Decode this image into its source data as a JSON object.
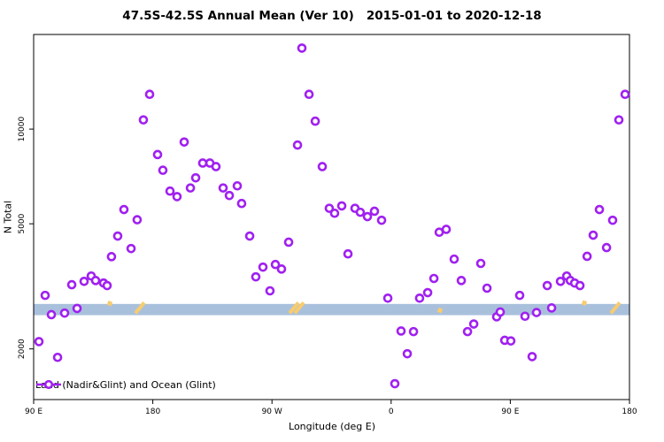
{
  "title": "47.5S-42.5S Annual Mean (Ver 10)   2015-01-01 to 2020-12-18",
  "x_axis": {
    "title": "Longitude (deg E)"
  },
  "y_axis": {
    "title": "N Total"
  },
  "legend": {
    "label": "Land (Nadir&Glint) and Ocean (Glint)"
  },
  "chart_data": {
    "type": "scatter",
    "title": "47.5S-42.5S Annual Mean (Ver 10)   2015-01-01 to 2020-12-18",
    "xlabel": "Longitude (deg E)",
    "ylabel": "N Total",
    "x_axis_note": "longitude axis wraps: 90E..180..90W..0..90E..180 (450 deg span)",
    "xlim": [
      90,
      540
    ],
    "ylim": [
      1380,
      20000
    ],
    "y_scale": "log10",
    "grid": false,
    "x_ticks": [
      {
        "deg": 90,
        "label": "90 E"
      },
      {
        "deg": 180,
        "label": "180"
      },
      {
        "deg": 270,
        "label": "90 W"
      },
      {
        "deg": 360,
        "label": "0"
      },
      {
        "deg": 450,
        "label": "90 E"
      },
      {
        "deg": 540,
        "label": "180"
      }
    ],
    "y_ticks": [
      {
        "value": 2000,
        "label": "2000"
      },
      {
        "value": 5000,
        "label": "5000"
      },
      {
        "value": 10000,
        "label": "10000"
      }
    ],
    "band": {
      "top": 2780,
      "bottom": 2560,
      "note": "horizontal reference band across full axis"
    },
    "marks": [
      {
        "deg": 147.5,
        "value": 2790,
        "kind": "dot"
      },
      {
        "deg": 170.2,
        "value": 2700,
        "kind": "slash"
      },
      {
        "deg": 290.6,
        "value": 2700,
        "kind": "slash-large"
      },
      {
        "deg": 396.9,
        "value": 2650,
        "kind": "dot"
      },
      {
        "deg": 505.9,
        "value": 2800,
        "kind": "dot"
      },
      {
        "deg": 529.3,
        "value": 2700,
        "kind": "slash"
      }
    ],
    "series_name": "Land (Nadir&Glint) and Ocean (Glint)",
    "points": [
      [
        94.0,
        2110
      ],
      [
        98.7,
        2960
      ],
      [
        103.4,
        2570
      ],
      [
        108.1,
        1880
      ],
      [
        113.4,
        2600
      ],
      [
        118.8,
        3200
      ],
      [
        122.8,
        2690
      ],
      [
        128.1,
        3280
      ],
      [
        133.5,
        3410
      ],
      [
        136.8,
        3300
      ],
      [
        142.8,
        3240
      ],
      [
        145.5,
        3180
      ],
      [
        148.8,
        3930
      ],
      [
        153.5,
        4570
      ],
      [
        158.2,
        5550
      ],
      [
        163.6,
        4170
      ],
      [
        168.2,
        5150
      ],
      [
        172.9,
        10700
      ],
      [
        177.6,
        12900
      ],
      [
        183.6,
        8300
      ],
      [
        187.6,
        7400
      ],
      [
        193.0,
        6350
      ],
      [
        198.3,
        6100
      ],
      [
        203.7,
        9100
      ],
      [
        208.4,
        6500
      ],
      [
        212.4,
        7000
      ],
      [
        217.7,
        7800
      ],
      [
        223.1,
        7800
      ],
      [
        227.7,
        7600
      ],
      [
        233.1,
        6500
      ],
      [
        237.8,
        6150
      ],
      [
        243.8,
        6600
      ],
      [
        247.1,
        5800
      ],
      [
        253.2,
        4570
      ],
      [
        257.8,
        3390
      ],
      [
        263.2,
        3640
      ],
      [
        268.5,
        3060
      ],
      [
        272.6,
        3710
      ],
      [
        277.2,
        3590
      ],
      [
        282.6,
        4370
      ],
      [
        289.3,
        8900
      ],
      [
        292.6,
        18100
      ],
      [
        298.0,
        12900
      ],
      [
        302.7,
        10600
      ],
      [
        308.0,
        7600
      ],
      [
        313.3,
        5600
      ],
      [
        317.3,
        5400
      ],
      [
        322.7,
        5700
      ],
      [
        327.4,
        4010
      ],
      [
        332.7,
        5600
      ],
      [
        336.7,
        5440
      ],
      [
        342.1,
        5270
      ],
      [
        347.4,
        5480
      ],
      [
        352.8,
        5130
      ],
      [
        357.5,
        2900
      ],
      [
        362.8,
        1550
      ],
      [
        367.5,
        2280
      ],
      [
        372.2,
        1930
      ],
      [
        376.9,
        2270
      ],
      [
        381.5,
        2900
      ],
      [
        387.6,
        3020
      ],
      [
        392.3,
        3350
      ],
      [
        396.3,
        4700
      ],
      [
        401.6,
        4800
      ],
      [
        407.6,
        3860
      ],
      [
        413.0,
        3300
      ],
      [
        417.7,
        2270
      ],
      [
        422.4,
        2400
      ],
      [
        427.7,
        3740
      ],
      [
        432.4,
        3120
      ],
      [
        439.7,
        2530
      ],
      [
        442.4,
        2620
      ],
      [
        445.8,
        2130
      ],
      [
        450.4,
        2120
      ],
      [
        457.1,
        2960
      ],
      [
        461.1,
        2540
      ],
      [
        466.5,
        1890
      ],
      [
        469.8,
        2610
      ],
      [
        477.9,
        3180
      ],
      [
        481.2,
        2700
      ],
      [
        487.9,
        3280
      ],
      [
        492.6,
        3410
      ],
      [
        495.3,
        3300
      ],
      [
        498.6,
        3240
      ],
      [
        502.6,
        3180
      ],
      [
        508.0,
        3940
      ],
      [
        512.6,
        4600
      ],
      [
        517.3,
        5550
      ],
      [
        522.7,
        4200
      ],
      [
        527.3,
        5130
      ],
      [
        532.0,
        10700
      ],
      [
        536.7,
        12900
      ]
    ],
    "colors": {
      "point": "#A020F0",
      "band": "#A9C0DC",
      "mark": "#F8CC6E",
      "axis": "#000000"
    }
  }
}
